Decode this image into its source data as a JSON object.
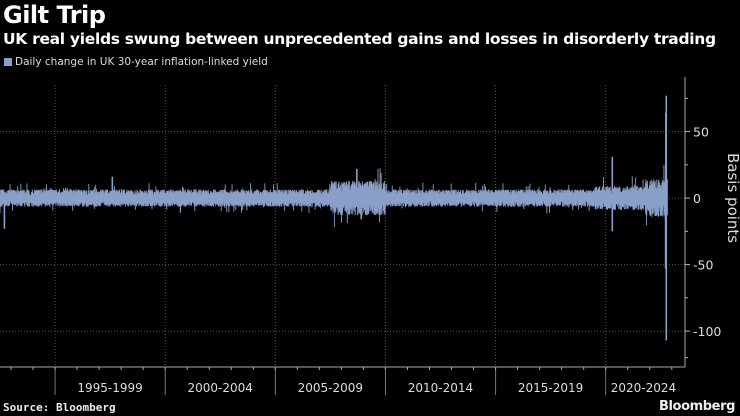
{
  "chart_data": {
    "type": "bar",
    "title": "Gilt Trip",
    "subtitle": "UK real yields swung between unprecedented gains and losses in disorderly trading",
    "legend": [
      "Daily change in UK 30-year inflation-linked yield"
    ],
    "series_color": "#8aa0c8",
    "ylabel": "Basis points",
    "xlabel": "",
    "x_range": [
      1992.5,
      2023.6
    ],
    "ylim": [
      -127,
      85
    ],
    "yticks": [
      50,
      0,
      -50,
      -100
    ],
    "xtick_labels": [
      "1995-1999",
      "2000-2004",
      "2005-2009",
      "2010-2014",
      "2015-2019",
      "2020-2024"
    ],
    "x_period_starts": [
      1995,
      2000,
      2005,
      2010,
      2015,
      2020
    ],
    "typical_daily_range_bp_by_period": [
      {
        "from": 1992.5,
        "to": 2007.5,
        "amp": 5
      },
      {
        "from": 2007.5,
        "to": 2010,
        "amp": 10
      },
      {
        "from": 2010,
        "to": 2019.5,
        "amp": 5
      },
      {
        "from": 2019.5,
        "to": 2021.8,
        "amp": 7
      },
      {
        "from": 2021.8,
        "to": 2022.8,
        "amp": 11
      }
    ],
    "notable_values": [
      {
        "x": 1992.7,
        "y": -23
      },
      {
        "x": 1997.6,
        "y": 16
      },
      {
        "x": 2008.7,
        "y": 22
      },
      {
        "x": 2008.9,
        "y": -16
      },
      {
        "x": 2020.3,
        "y": 31
      },
      {
        "x": 2020.3,
        "y": -25
      },
      {
        "x": 2022.75,
        "y": 77
      },
      {
        "x": 2022.75,
        "y": -107
      },
      {
        "x": 2022.73,
        "y": 64
      },
      {
        "x": 2022.72,
        "y": -53
      }
    ]
  },
  "source": "Source: Bloomberg",
  "logo": "Bloomberg"
}
